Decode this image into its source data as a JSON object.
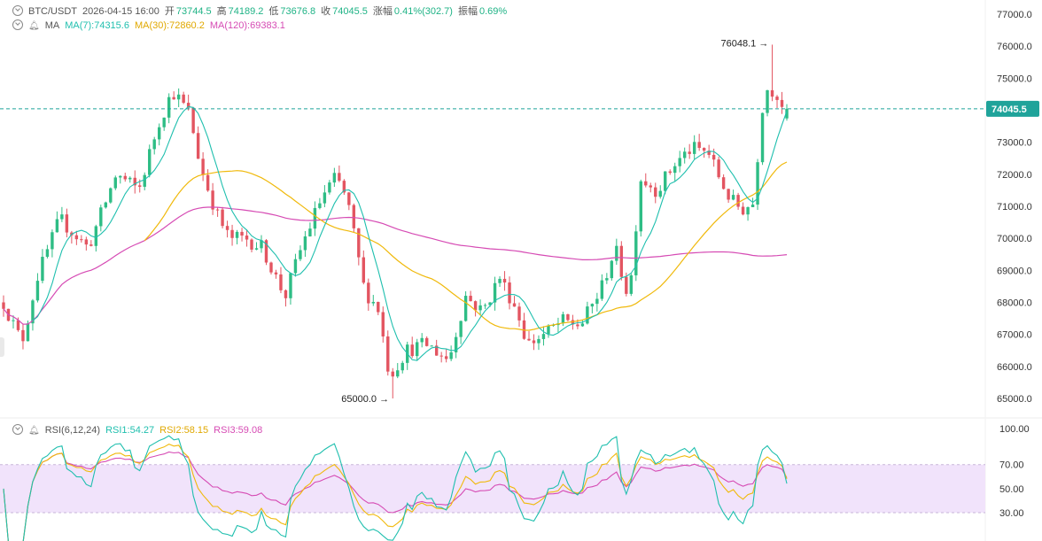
{
  "header": {
    "symbol": "BTC/USDT",
    "datetime": "2026-04-15 16:00",
    "open_label": "开",
    "open": "73744.5",
    "high_label": "高",
    "high": "74189.2",
    "low_label": "低",
    "low": "73676.8",
    "close_label": "收",
    "close": "74045.5",
    "change_label": "涨幅",
    "change": "0.41%(302.7)",
    "amp_label": "振幅",
    "amp": "0.69%"
  },
  "ma_legend": {
    "title": "MA",
    "ma7": "MA(7):74315.6",
    "ma30": "MA(30):72860.2",
    "ma120": "MA(120):69383.1"
  },
  "rsi_legend": {
    "title": "RSI(6,12,24)",
    "rsi1": "RSI1:54.27",
    "rsi2": "RSI2:58.15",
    "rsi3": "RSI3:59.08"
  },
  "colors": {
    "up": "#2ebd85",
    "down": "#e35561",
    "ma7": "#1fbfae",
    "ma30": "#f0b90b",
    "ma120": "#d64bb4",
    "rsi1": "#1fbfae",
    "rsi2": "#f0b90b",
    "rsi3": "#d64bb4",
    "band": "#f1e3fb"
  },
  "chart_data": [
    {
      "type": "candlestick",
      "title": "BTC/USDT",
      "ylim": [
        64500,
        77200
      ],
      "y_ticks": [
        "77000.0",
        "76000.0",
        "75000.0",
        "74000.0",
        "73000.0",
        "72000.0",
        "71000.0",
        "70000.0",
        "69000.0",
        "68000.0",
        "67000.0",
        "66000.0",
        "65000.0"
      ],
      "current_price": "74045.5",
      "annotations": [
        {
          "text": "76048.1",
          "value": 76048.1
        },
        {
          "text": "65000.0",
          "value": 65000.0
        }
      ],
      "candles_count": 162,
      "anchors": [
        [
          0,
          68000
        ],
        [
          5,
          67000
        ],
        [
          7,
          66900
        ],
        [
          12,
          68800
        ],
        [
          20,
          70600
        ],
        [
          30,
          69700
        ],
        [
          40,
          72000
        ],
        [
          48,
          71500
        ],
        [
          55,
          73600
        ],
        [
          60,
          74600
        ],
        [
          66,
          73900
        ],
        [
          70,
          72200
        ],
        [
          76,
          70700
        ],
        [
          80,
          70000
        ],
        [
          86,
          70000
        ],
        [
          92,
          69700
        ],
        [
          97,
          68700
        ],
        [
          100,
          68200
        ],
        [
          106,
          69800
        ],
        [
          113,
          71300
        ],
        [
          118,
          71900
        ],
        [
          122,
          71200
        ],
        [
          128,
          68400
        ],
        [
          133,
          67800
        ],
        [
          137,
          65700
        ],
        [
          143,
          66500
        ],
        [
          150,
          66700
        ],
        [
          158,
          66200
        ],
        [
          164,
          68200
        ],
        [
          170,
          67700
        ],
        [
          176,
          68800
        ],
        [
          182,
          67800
        ],
        [
          186,
          66700
        ],
        [
          192,
          67000
        ],
        [
          198,
          67400
        ],
        [
          205,
          67300
        ],
        [
          212,
          68400
        ],
        [
          217,
          69700
        ],
        [
          222,
          68100
        ],
        [
          226,
          71900
        ],
        [
          232,
          71500
        ],
        [
          238,
          72300
        ],
        [
          244,
          72800
        ],
        [
          250,
          72700
        ],
        [
          254,
          71900
        ],
        [
          258,
          71200
        ],
        [
          262,
          70900
        ],
        [
          266,
          71100
        ],
        [
          270,
          74700
        ],
        [
          274,
          74600
        ],
        [
          278,
          73900
        ]
      ]
    },
    {
      "type": "line",
      "title": "RSI(6,12,24)",
      "ylim": [
        20,
        100
      ],
      "y_ticks": [
        "100.00",
        "70.00",
        "50.00",
        "30.00"
      ],
      "band": [
        30,
        70
      ],
      "series": [
        {
          "name": "RSI1",
          "last": 54.27
        },
        {
          "name": "RSI2",
          "last": 58.15
        },
        {
          "name": "RSI3",
          "last": 59.08
        }
      ]
    }
  ]
}
